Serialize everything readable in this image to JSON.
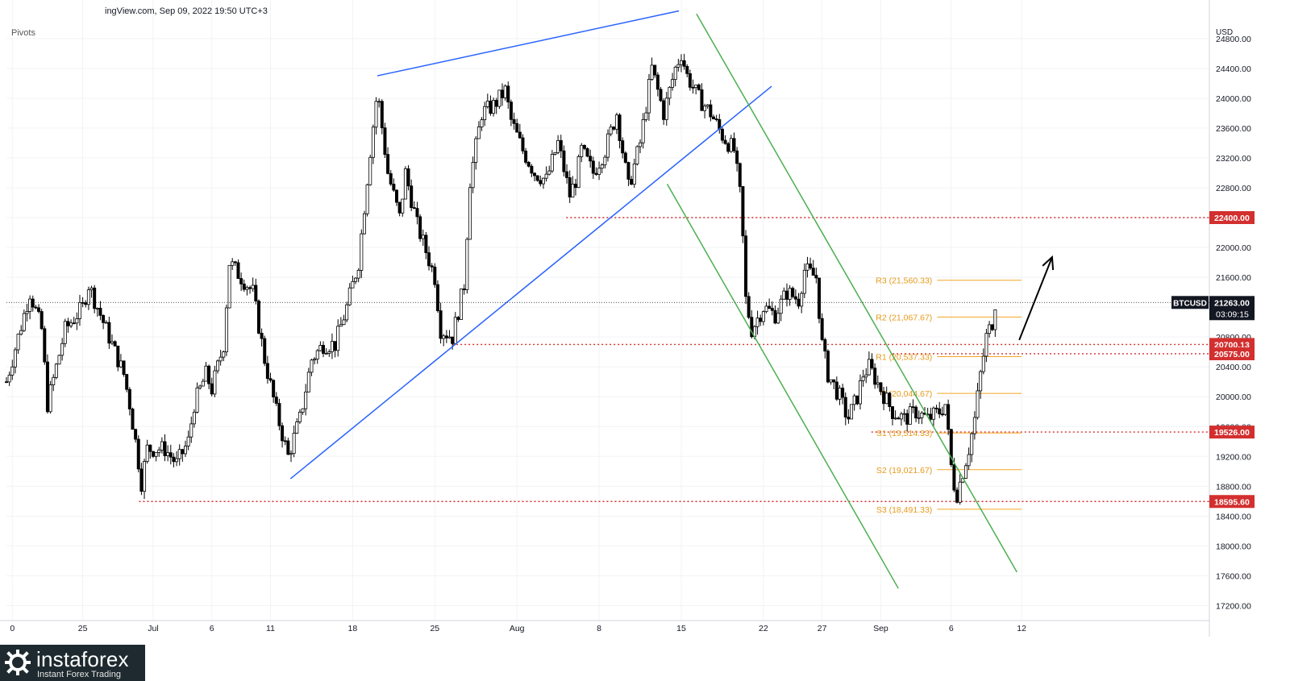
{
  "header": {
    "source": "ingView.com, Sep 09, 2022 19:50 UTC+3",
    "indicator": "Pivots"
  },
  "brand": {
    "name": "instaforex",
    "tagline": "Instant Forex Trading"
  },
  "colors": {
    "bull": "#ffffff",
    "bear": "#000000",
    "wick": "#000000",
    "pivot": "#f5a623",
    "pivot_text": "#e69a1b",
    "support": "#d32f2f",
    "trend": "#2962ff",
    "channel": "#4caf50",
    "arrow": "#000000"
  },
  "chart_data": {
    "type": "candlestick",
    "symbol": "BTCUSD",
    "currency": "USD",
    "ylim": [
      17000,
      25100
    ],
    "y_ticks": [
      17200,
      17600,
      18000,
      18400,
      18800,
      19200,
      19600,
      20000,
      20400,
      20800,
      21200,
      21600,
      22000,
      22400,
      22800,
      23200,
      23600,
      24000,
      24400,
      24800
    ],
    "x_range": [
      0,
      102.5
    ],
    "x_ticks": [
      {
        "x": 0.5,
        "label": "0"
      },
      {
        "x": 6.5,
        "label": "25"
      },
      {
        "x": 12.5,
        "label": "Jul"
      },
      {
        "x": 17.5,
        "label": "6"
      },
      {
        "x": 22.5,
        "label": "11"
      },
      {
        "x": 29.5,
        "label": "18"
      },
      {
        "x": 36.5,
        "label": "25"
      },
      {
        "x": 43.5,
        "label": "Aug"
      },
      {
        "x": 50.5,
        "label": "8"
      },
      {
        "x": 57.5,
        "label": "15"
      },
      {
        "x": 64.5,
        "label": "22"
      },
      {
        "x": 69.5,
        "label": "27"
      },
      {
        "x": 74.5,
        "label": "Sep"
      },
      {
        "x": 80.5,
        "label": "6"
      },
      {
        "x": 86.5,
        "label": "12"
      }
    ],
    "last_price": {
      "value": 21263.0,
      "label": "21263.00",
      "symbol": "BTCUSD",
      "countdown": "03:09:15"
    },
    "levels": [
      {
        "value": 22400.0,
        "label": "22400.00",
        "x_start": 47.7
      },
      {
        "value": 20700.13,
        "label": "20700.13",
        "x_start": 38.0
      },
      {
        "value": 20575.0,
        "label": "20575.00",
        "x_start": 75.5
      },
      {
        "value": 19526.0,
        "label": "19526.00",
        "x_start": 73.7
      },
      {
        "value": 18595.6,
        "label": "18595.60",
        "x_start": 11.3
      }
    ],
    "pivots": [
      {
        "name": "R3",
        "value": 21560.33,
        "label": "R3 (21,560.33)"
      },
      {
        "name": "R2",
        "value": 21067.67,
        "label": "R2 (21,067.67)"
      },
      {
        "name": "R1",
        "value": 20537.33,
        "label": "R1 (20,537.33)"
      },
      {
        "name": "P",
        "value": 20044.67,
        "label": "P (20,044.67)"
      },
      {
        "name": "S1",
        "value": 19514.33,
        "label": "S1 (19,514.33)"
      },
      {
        "name": "S2",
        "value": 19021.67,
        "label": "S2 (19,021.67)"
      },
      {
        "name": "S3",
        "value": 18491.33,
        "label": "S3 (18,491.33)"
      }
    ],
    "pivot_x": [
      79.3,
      86.5
    ],
    "trendlines": [
      {
        "kind": "resistance",
        "from": [
          31.6,
          24300
        ],
        "to": [
          57.3,
          25170
        ]
      },
      {
        "kind": "support",
        "from": [
          24.2,
          18900
        ],
        "to": [
          65.2,
          24160
        ]
      },
      {
        "kind": "channel_upper",
        "from": [
          58.8,
          25130
        ],
        "to": [
          86.1,
          17650
        ]
      },
      {
        "kind": "channel_lower",
        "from": [
          56.3,
          22850
        ],
        "to": [
          76.0,
          17430
        ]
      }
    ],
    "arrow": {
      "from": [
        86.3,
        20760
      ],
      "to": [
        89.1,
        21870
      ]
    },
    "anchors": [
      [
        0.0,
        20200
      ],
      [
        2.0,
        21400
      ],
      [
        3.0,
        20900
      ],
      [
        3.5,
        19900
      ],
      [
        5.0,
        20900
      ],
      [
        6.5,
        21200
      ],
      [
        7.0,
        21500
      ],
      [
        8.0,
        21100
      ],
      [
        9.0,
        20700
      ],
      [
        10.0,
        20300
      ],
      [
        10.5,
        19900
      ],
      [
        11.0,
        19400
      ],
      [
        11.5,
        18850
      ],
      [
        12.0,
        19300
      ],
      [
        13.5,
        19300
      ],
      [
        14.5,
        19100
      ],
      [
        15.5,
        19400
      ],
      [
        16.0,
        19900
      ],
      [
        17.0,
        20300
      ],
      [
        17.5,
        20100
      ],
      [
        18.5,
        20700
      ],
      [
        19.0,
        21800
      ],
      [
        21.0,
        21400
      ],
      [
        22.0,
        20500
      ],
      [
        23.0,
        19800
      ],
      [
        24.0,
        19200
      ],
      [
        25.0,
        19700
      ],
      [
        26.0,
        20500
      ],
      [
        27.0,
        20700
      ],
      [
        28.0,
        20700
      ],
      [
        29.0,
        21200
      ],
      [
        30.0,
        21800
      ],
      [
        31.0,
        23300
      ],
      [
        31.6,
        24100
      ],
      [
        32.5,
        23000
      ],
      [
        33.5,
        22400
      ],
      [
        34.0,
        23000
      ],
      [
        35.0,
        22300
      ],
      [
        36.5,
        21600
      ],
      [
        37.0,
        20900
      ],
      [
        38.0,
        20800
      ],
      [
        39.0,
        21500
      ],
      [
        39.5,
        22900
      ],
      [
        40.5,
        23800
      ],
      [
        41.5,
        23900
      ],
      [
        42.5,
        24100
      ],
      [
        43.0,
        23700
      ],
      [
        44.0,
        23300
      ],
      [
        45.0,
        23000
      ],
      [
        46.0,
        22900
      ],
      [
        47.0,
        23400
      ],
      [
        48.0,
        22700
      ],
      [
        48.5,
        22900
      ],
      [
        49.0,
        23300
      ],
      [
        50.0,
        23000
      ],
      [
        51.0,
        23300
      ],
      [
        52.0,
        23800
      ],
      [
        53.0,
        22800
      ],
      [
        54.0,
        23400
      ],
      [
        55.0,
        24400
      ],
      [
        56.0,
        23800
      ],
      [
        57.0,
        24400
      ],
      [
        57.5,
        24600
      ],
      [
        58.0,
        24300
      ],
      [
        59.0,
        24000
      ],
      [
        60.0,
        23800
      ],
      [
        61.0,
        23500
      ],
      [
        62.0,
        23300
      ],
      [
        62.6,
        22600
      ],
      [
        63.0,
        21300
      ],
      [
        63.5,
        20900
      ],
      [
        64.5,
        21200
      ],
      [
        65.5,
        21100
      ],
      [
        66.5,
        21400
      ],
      [
        67.5,
        21300
      ],
      [
        68.0,
        21700
      ],
      [
        69.0,
        21600
      ],
      [
        69.5,
        20700
      ],
      [
        70.0,
        20300
      ],
      [
        71.0,
        20000
      ],
      [
        71.7,
        19700
      ],
      [
        72.5,
        20000
      ],
      [
        73.0,
        20300
      ],
      [
        73.5,
        20400
      ],
      [
        74.5,
        20100
      ],
      [
        75.5,
        19800
      ],
      [
        76.5,
        19700
      ],
      [
        77.5,
        19800
      ],
      [
        78.5,
        19700
      ],
      [
        79.5,
        19800
      ],
      [
        80.0,
        19900
      ],
      [
        80.6,
        18900
      ],
      [
        81.0,
        18700
      ],
      [
        81.5,
        19000
      ],
      [
        82.0,
        19300
      ],
      [
        82.5,
        19700
      ],
      [
        83.0,
        20300
      ],
      [
        83.5,
        20800
      ],
      [
        84.0,
        21000
      ],
      [
        84.4,
        21263
      ]
    ]
  }
}
